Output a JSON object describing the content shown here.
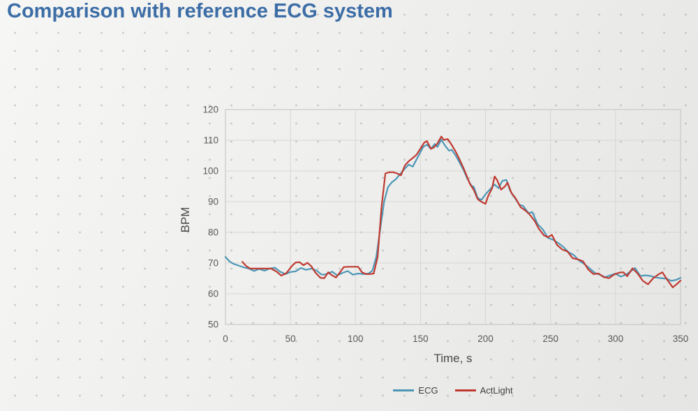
{
  "title": "Comparison with reference ECG system",
  "colors": {
    "title_text": "#3c6da6",
    "tick_text": "#595959",
    "axis_title_text": "#4a4a4a",
    "gridline": "#d6d6d4",
    "plot_border": "#c9c9c7",
    "legend_text": "#3f3f3f"
  },
  "chart_data": {
    "type": "line",
    "title": "",
    "xlabel": "Time, s",
    "ylabel": "BPM",
    "xlim": [
      0,
      350
    ],
    "ylim": [
      50,
      120
    ],
    "xticks": [
      0,
      50,
      100,
      150,
      200,
      250,
      300,
      350
    ],
    "yticks": [
      50,
      60,
      70,
      80,
      90,
      100,
      110,
      120
    ],
    "grid": true,
    "legend_position": "bottom",
    "series": [
      {
        "name": "ECG",
        "color": "#4d97b6",
        "points": [
          [
            0,
            72
          ],
          [
            3,
            70.6
          ],
          [
            6,
            69.8
          ],
          [
            10,
            69.2
          ],
          [
            14,
            68.6
          ],
          [
            18,
            68.2
          ],
          [
            22,
            67.4
          ],
          [
            26,
            68.1
          ],
          [
            30,
            67.5
          ],
          [
            34,
            68.2
          ],
          [
            38,
            68.5
          ],
          [
            42,
            67.2
          ],
          [
            46,
            66.4
          ],
          [
            50,
            67.1
          ],
          [
            54,
            67.3
          ],
          [
            58,
            68.4
          ],
          [
            62,
            67.8
          ],
          [
            66,
            68.2
          ],
          [
            70,
            67.6
          ],
          [
            74,
            66.2
          ],
          [
            78,
            66.4
          ],
          [
            82,
            67.2
          ],
          [
            86,
            66.0
          ],
          [
            90,
            66.8
          ],
          [
            94,
            67.4
          ],
          [
            98,
            66.2
          ],
          [
            102,
            66.6
          ],
          [
            106,
            66.4
          ],
          [
            110,
            66.6
          ],
          [
            113,
            67.5
          ],
          [
            116,
            72
          ],
          [
            119,
            81
          ],
          [
            122,
            90
          ],
          [
            125,
            94.8
          ],
          [
            128,
            96.3
          ],
          [
            131,
            97.3
          ],
          [
            134,
            98.8
          ],
          [
            138,
            100.8
          ],
          [
            141,
            102.1
          ],
          [
            144,
            101.4
          ],
          [
            148,
            104.6
          ],
          [
            152,
            107.8
          ],
          [
            155,
            108.6
          ],
          [
            158,
            107.2
          ],
          [
            161,
            108.8
          ],
          [
            163,
            107.8
          ],
          [
            166,
            110.2
          ],
          [
            169,
            108.2
          ],
          [
            172,
            106.6
          ],
          [
            174,
            106.9
          ],
          [
            177,
            105.1
          ],
          [
            180,
            102.8
          ],
          [
            183,
            100.4
          ],
          [
            186,
            97.5
          ],
          [
            189,
            95.3
          ],
          [
            191,
            94.8
          ],
          [
            194,
            91.2
          ],
          [
            197,
            90.6
          ],
          [
            200,
            92.4
          ],
          [
            203,
            93.8
          ],
          [
            207,
            95.6
          ],
          [
            210,
            94.4
          ],
          [
            213,
            96.8
          ],
          [
            216,
            97.1
          ],
          [
            219,
            93.5
          ],
          [
            222,
            91.6
          ],
          [
            226,
            89.0
          ],
          [
            229,
            88.6
          ],
          [
            233,
            86.3
          ],
          [
            236,
            86.6
          ],
          [
            240,
            82.7
          ],
          [
            244,
            81.0
          ],
          [
            248,
            78.2
          ],
          [
            252,
            77.6
          ],
          [
            256,
            76.5
          ],
          [
            260,
            75.2
          ],
          [
            264,
            73.5
          ],
          [
            268,
            72.6
          ],
          [
            272,
            70.8
          ],
          [
            276,
            69.7
          ],
          [
            280,
            68.3
          ],
          [
            284,
            66.8
          ],
          [
            288,
            66.2
          ],
          [
            292,
            65.4
          ],
          [
            296,
            66.0
          ],
          [
            300,
            66.6
          ],
          [
            304,
            65.6
          ],
          [
            308,
            66.2
          ],
          [
            312,
            67.4
          ],
          [
            315,
            68.4
          ],
          [
            319,
            65.8
          ],
          [
            323,
            66.0
          ],
          [
            327,
            65.8
          ],
          [
            331,
            65.3
          ],
          [
            335,
            65.1
          ],
          [
            339,
            64.9
          ],
          [
            343,
            64.2
          ],
          [
            347,
            64.6
          ],
          [
            350,
            65.2
          ]
        ]
      },
      {
        "name": "ActLight",
        "color": "#bf3a31",
        "points": [
          [
            13,
            70.4
          ],
          [
            16,
            69.0
          ],
          [
            19,
            68.2
          ],
          [
            23,
            68.2
          ],
          [
            27,
            68.2
          ],
          [
            31,
            68.2
          ],
          [
            35,
            68.2
          ],
          [
            39,
            67.3
          ],
          [
            43,
            65.9
          ],
          [
            47,
            66.8
          ],
          [
            51,
            69.0
          ],
          [
            54,
            70.2
          ],
          [
            57,
            70.3
          ],
          [
            60,
            69.3
          ],
          [
            63,
            70.1
          ],
          [
            66,
            69.0
          ],
          [
            69,
            67.0
          ],
          [
            73,
            65.2
          ],
          [
            76,
            65.1
          ],
          [
            79,
            67.0
          ],
          [
            82,
            66.0
          ],
          [
            85,
            65.3
          ],
          [
            88,
            66.9
          ],
          [
            91,
            68.7
          ],
          [
            95,
            68.8
          ],
          [
            99,
            68.8
          ],
          [
            102,
            68.8
          ],
          [
            105,
            67.0
          ],
          [
            108,
            66.4
          ],
          [
            111,
            66.4
          ],
          [
            114,
            66.6
          ],
          [
            117,
            72.0
          ],
          [
            120,
            88.0
          ],
          [
            123,
            99.2
          ],
          [
            126,
            99.6
          ],
          [
            129,
            99.6
          ],
          [
            132,
            99.2
          ],
          [
            135,
            98.6
          ],
          [
            138,
            101.8
          ],
          [
            141,
            103.2
          ],
          [
            144,
            104.2
          ],
          [
            147,
            105.3
          ],
          [
            150,
            107.3
          ],
          [
            153,
            109.3
          ],
          [
            155,
            109.7
          ],
          [
            158,
            107.2
          ],
          [
            160,
            107.6
          ],
          [
            163,
            108.9
          ],
          [
            166,
            111.2
          ],
          [
            168,
            110.1
          ],
          [
            171,
            110.4
          ],
          [
            174,
            108.5
          ],
          [
            177,
            106.3
          ],
          [
            180,
            103.8
          ],
          [
            183,
            101.0
          ],
          [
            185,
            99.0
          ],
          [
            188,
            95.8
          ],
          [
            191,
            93.8
          ],
          [
            194,
            90.8
          ],
          [
            197,
            89.9
          ],
          [
            200,
            89.3
          ],
          [
            202,
            91.8
          ],
          [
            205,
            94.3
          ],
          [
            207,
            98.2
          ],
          [
            209,
            97.0
          ],
          [
            212,
            93.9
          ],
          [
            215,
            95.0
          ],
          [
            217,
            96.2
          ],
          [
            220,
            92.8
          ],
          [
            223,
            91.2
          ],
          [
            227,
            88.2
          ],
          [
            231,
            87.0
          ],
          [
            234,
            85.8
          ],
          [
            238,
            83.6
          ],
          [
            241,
            81.2
          ],
          [
            245,
            79.0
          ],
          [
            248,
            78.4
          ],
          [
            251,
            79.2
          ],
          [
            255,
            75.9
          ],
          [
            259,
            74.4
          ],
          [
            263,
            73.8
          ],
          [
            267,
            71.6
          ],
          [
            271,
            71.2
          ],
          [
            275,
            70.6
          ],
          [
            279,
            67.9
          ],
          [
            283,
            66.4
          ],
          [
            287,
            66.6
          ],
          [
            291,
            65.4
          ],
          [
            295,
            65.1
          ],
          [
            299,
            66.3
          ],
          [
            303,
            66.9
          ],
          [
            306,
            67.0
          ],
          [
            309,
            65.7
          ],
          [
            313,
            68.3
          ],
          [
            317,
            66.6
          ],
          [
            321,
            64.2
          ],
          [
            325,
            63.1
          ],
          [
            329,
            65.1
          ],
          [
            333,
            66.3
          ],
          [
            336,
            67.0
          ],
          [
            340,
            64.4
          ],
          [
            344,
            62.1
          ],
          [
            347,
            63.1
          ],
          [
            350,
            64.3
          ]
        ]
      }
    ]
  }
}
